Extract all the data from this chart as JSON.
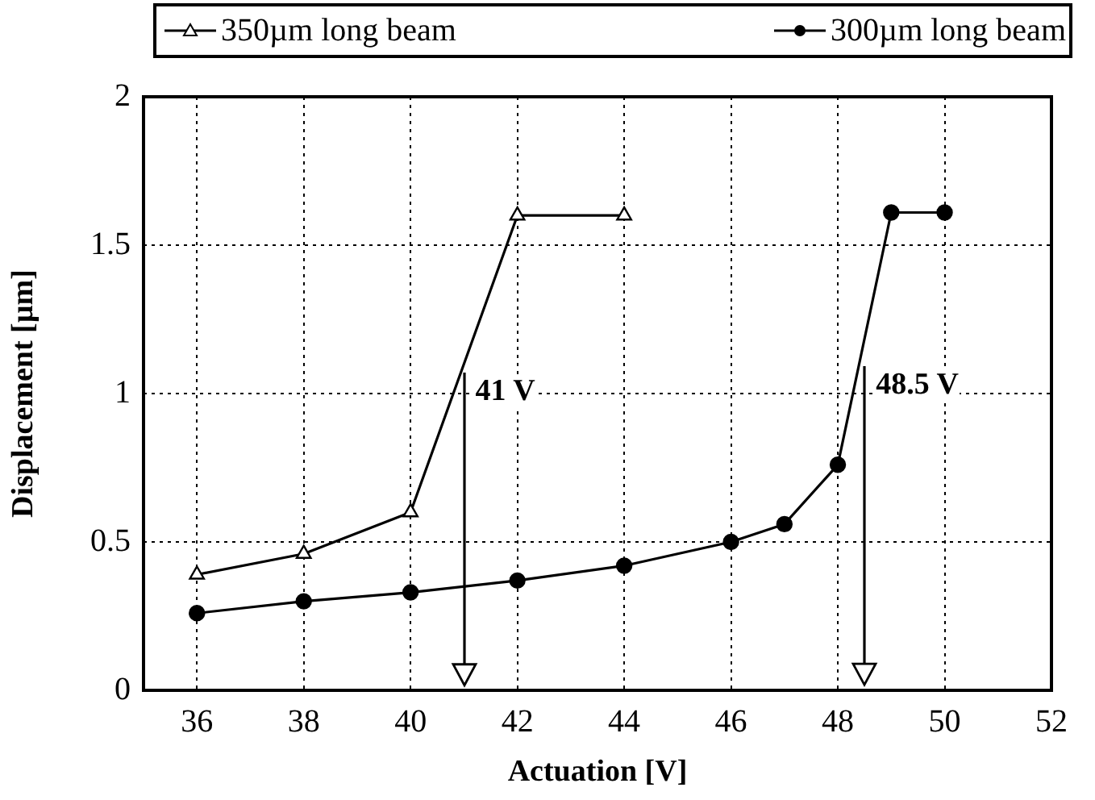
{
  "chart_data": {
    "type": "line",
    "xlabel": "Actuation [V]",
    "ylabel": "Displacement [µm]",
    "xlim": [
      35,
      52
    ],
    "xticks": [
      36,
      38,
      40,
      42,
      44,
      46,
      48,
      50,
      52
    ],
    "ylim": [
      0,
      2
    ],
    "yticks": [
      0,
      0.5,
      1,
      1.5,
      2
    ],
    "grid": true,
    "legend": "top",
    "series": [
      {
        "name": "350µm long beam",
        "color": "#000000",
        "marker": "triangle",
        "x": [
          36,
          38,
          40,
          42,
          44
        ],
        "values": [
          0.39,
          0.46,
          0.6,
          1.6,
          1.6
        ]
      },
      {
        "name": "300µm long beam",
        "color": "#000000",
        "marker": "circle",
        "x": [
          36,
          38,
          40,
          42,
          44,
          46,
          47,
          48,
          49,
          50
        ],
        "values": [
          0.26,
          0.3,
          0.33,
          0.37,
          0.42,
          0.5,
          0.56,
          0.76,
          1.61,
          1.61
        ]
      }
    ],
    "annotations": [
      {
        "text": "41 V",
        "x": 41,
        "y": 1.07
      },
      {
        "text": "48.5 V",
        "x": 48.5,
        "y": 1.09
      }
    ]
  }
}
